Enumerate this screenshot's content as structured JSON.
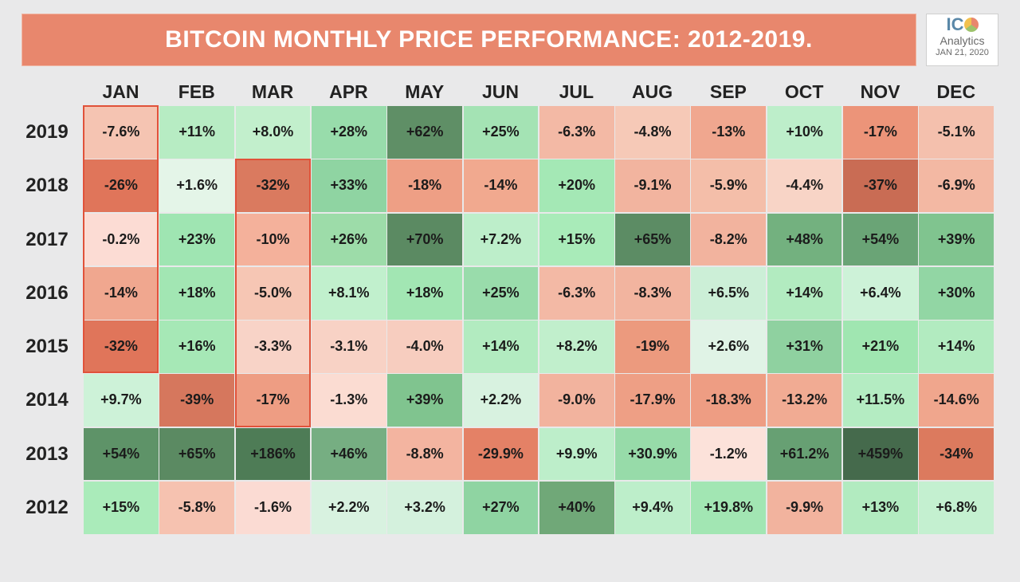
{
  "title": "BITCOIN MONTHLY PRICE PERFORMANCE: 2012-2019.",
  "logo": {
    "mark_left": "IC",
    "word": "Analytics",
    "date": "JAN 21, 2020"
  },
  "chart_data": {
    "type": "heatmap",
    "title": "BITCOIN MONTHLY PRICE PERFORMANCE: 2012-2019.",
    "x": [
      "JAN",
      "FEB",
      "MAR",
      "APR",
      "MAY",
      "JUN",
      "JUL",
      "AUG",
      "SEP",
      "OCT",
      "NOV",
      "DEC"
    ],
    "y": [
      "2019",
      "2018",
      "2017",
      "2016",
      "2015",
      "2014",
      "2013",
      "2012"
    ],
    "values": [
      [
        "-7.6%",
        "+11%",
        "+8.0%",
        "+28%",
        "+62%",
        "+25%",
        "-6.3%",
        "-4.8%",
        "-13%",
        "+10%",
        "-17%",
        "-5.1%"
      ],
      [
        "-26%",
        "+1.6%",
        "-32%",
        "+33%",
        "-18%",
        "-14%",
        "+20%",
        "-9.1%",
        "-5.9%",
        "-4.4%",
        "-37%",
        "-6.9%"
      ],
      [
        "-0.2%",
        "+23%",
        "-10%",
        "+26%",
        "+70%",
        "+7.2%",
        "+15%",
        "+65%",
        "-8.2%",
        "+48%",
        "+54%",
        "+39%"
      ],
      [
        "-14%",
        "+18%",
        "-5.0%",
        "+8.1%",
        "+18%",
        "+25%",
        "-6.3%",
        "-8.3%",
        "+6.5%",
        "+14%",
        "+6.4%",
        "+30%"
      ],
      [
        "-32%",
        "+16%",
        "-3.3%",
        "-3.1%",
        "-4.0%",
        "+14%",
        "+8.2%",
        "-19%",
        "+2.6%",
        "+31%",
        "+21%",
        "+14%"
      ],
      [
        "+9.7%",
        "-39%",
        "-17%",
        "-1.3%",
        "+39%",
        "+2.2%",
        "-9.0%",
        "-17.9%",
        "-18.3%",
        "-13.2%",
        "+11.5%",
        "-14.6%"
      ],
      [
        "+54%",
        "+65%",
        "+186%",
        "+46%",
        "-8.8%",
        "-29.9%",
        "+9.9%",
        "+30.9%",
        "-1.2%",
        "+61.2%",
        "+459%",
        "-34%"
      ],
      [
        "+15%",
        "-5.8%",
        "-1.6%",
        "+2.2%",
        "+3.2%",
        "+27%",
        "+40%",
        "+9.4%",
        "+19.8%",
        "-9.9%",
        "+13%",
        "+6.8%"
      ]
    ],
    "colors": [
      [
        "#f5c4b2",
        "#b7ecc3",
        "#c2efcc",
        "#98dcab",
        "#5f8f66",
        "#a4e3b4",
        "#f3b9a5",
        "#f6c9b7",
        "#f0a78f",
        "#bdeeca",
        "#ec9479",
        "#f4c0ad"
      ],
      [
        "#e0755a",
        "#e4f5e8",
        "#da7a5f",
        "#8fd4a2",
        "#ee9f85",
        "#f1a98f",
        "#a4e8b5",
        "#f2b49f",
        "#f4bea9",
        "#f8d4c6",
        "#c96c54",
        "#f3b8a3"
      ],
      [
        "#fcdcd4",
        "#9fe5b2",
        "#f4b19b",
        "#9ddca9",
        "#5b8a62",
        "#bdeeca",
        "#a9ebb9",
        "#5c8c64",
        "#f2b39e",
        "#73b17f",
        "#6aa476",
        "#80c48f"
      ],
      [
        "#f0a78f",
        "#a2e6b3",
        "#f6c6b4",
        "#c1f0cd",
        "#a2e6b3",
        "#99dcab",
        "#f3b9a5",
        "#f2b49f",
        "#ccefd7",
        "#b2ebc0",
        "#cdf2d8",
        "#92d6a4"
      ],
      [
        "#e0755a",
        "#a6e8b6",
        "#f8d3c7",
        "#f8d2c5",
        "#f7cdbf",
        "#b2ebc0",
        "#c1efcc",
        "#ec9a7e",
        "#e0f3e6",
        "#8fd1a0",
        "#a0e6b1",
        "#b2ebc0"
      ],
      [
        "#cdf2d8",
        "#d6775d",
        "#ee9d83",
        "#fbdcd2",
        "#80c48f",
        "#d8f2e0",
        "#f2b39e",
        "#ee9f85",
        "#ee9d83",
        "#f1ab93",
        "#b4ecc2",
        "#f0a68d"
      ],
      [
        "#5e9368",
        "#5b8a62",
        "#4e7c56",
        "#76ae82",
        "#f3b4a0",
        "#e48166",
        "#bdeeca",
        "#97dba9",
        "#fce2da",
        "#67a073",
        "#456a4c",
        "#dc7a5e"
      ],
      [
        "#aaebba",
        "#f6c2b0",
        "#fbdbd3",
        "#d8f2e0",
        "#d4f1dd",
        "#8fd4a2",
        "#70a878",
        "#bdeeca",
        "#a2e6b3",
        "#f2b39e",
        "#b2ebc0",
        "#c4f0d0"
      ]
    ],
    "highlighted_columns": [
      "JAN",
      "MAR"
    ]
  }
}
